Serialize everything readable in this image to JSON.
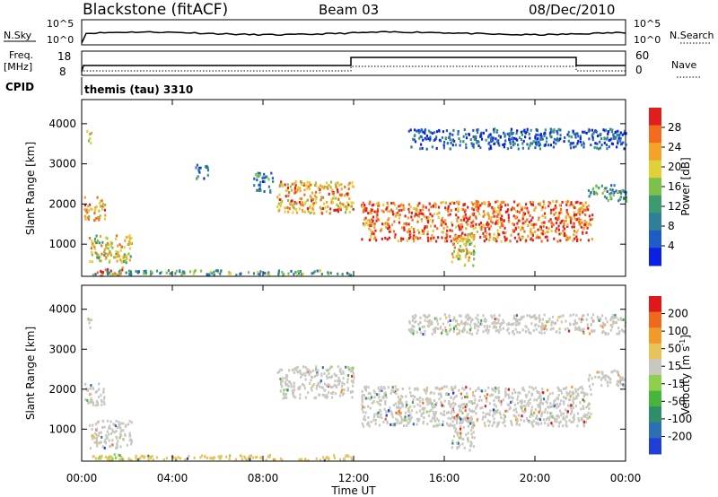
{
  "header": {
    "station": "Blackstone (fitACF)",
    "beam": "Beam 03",
    "date": "08/Dec/2010"
  },
  "noise_panel": {
    "left_label": "N.Sky",
    "right_label": "N.Search",
    "left_ticks": [
      "10^5",
      "10^0"
    ],
    "right_ticks": [
      "10^5",
      "10^0"
    ]
  },
  "freq_panel": {
    "left_label_1": "Freq.",
    "left_label_2": "[MHz]",
    "right_label": "Nave",
    "left_ticks": [
      "18",
      "8"
    ],
    "right_ticks": [
      "60",
      "0"
    ],
    "cpid_label": "CPID",
    "program_label": "themis (tau) 3310"
  },
  "colors": {
    "power": [
      "#0a1ee6",
      "#1e5ac8",
      "#2f7f99",
      "#3c9a6e",
      "#7cc24a",
      "#e0d03a",
      "#f4a32a",
      "#f46a1e",
      "#e01e1e"
    ],
    "velocity": [
      "#1e3ed6",
      "#2c6fb4",
      "#2f8e6a",
      "#46b53c",
      "#8cd04c",
      "#c8c8c0",
      "#e8c35a",
      "#f09a2a",
      "#f0681e",
      "#e01818"
    ]
  },
  "chart_data": [
    {
      "type": "heatmap",
      "panel": "power",
      "ylabel": "Slant Range [km]",
      "y_ticks": [
        1000,
        2000,
        3000,
        4000
      ],
      "ylim": [
        200,
        4600
      ],
      "x_ticks": [
        "00:00",
        "04:00",
        "08:00",
        "12:00",
        "16:00",
        "20:00",
        "00:00"
      ],
      "xlim_hours": [
        0,
        24
      ],
      "colorbar_label": "Power [dB]",
      "colorbar_ticks": [
        "28",
        "24",
        "20",
        "16",
        "12",
        "8",
        "4"
      ],
      "regions": [
        {
          "t0": 0.2,
          "t1": 0.45,
          "r0": 3550,
          "r1": 3850,
          "level": 5
        },
        {
          "t0": 0.1,
          "t1": 1.0,
          "r0": 1600,
          "r1": 2200,
          "level": 6
        },
        {
          "t0": 0.3,
          "t1": 2.2,
          "r0": 550,
          "r1": 1250,
          "level": 5
        },
        {
          "t0": 0.6,
          "t1": 1.8,
          "r0": 250,
          "r1": 450,
          "level": 7
        },
        {
          "t0": 0.4,
          "t1": 11.9,
          "r0": 250,
          "r1": 380,
          "level": 3
        },
        {
          "t0": 7.5,
          "t1": 8.4,
          "r0": 2300,
          "r1": 2800,
          "level": 2
        },
        {
          "t0": 8.6,
          "t1": 12.0,
          "r0": 1800,
          "r1": 2600,
          "level": 6
        },
        {
          "t0": 5.0,
          "t1": 5.6,
          "r0": 2650,
          "r1": 3000,
          "level": 2
        },
        {
          "t0": 12.3,
          "t1": 22.5,
          "r0": 1100,
          "r1": 2100,
          "level": 7
        },
        {
          "t0": 16.3,
          "t1": 17.3,
          "r0": 500,
          "r1": 1300,
          "level": 5
        },
        {
          "t0": 14.4,
          "t1": 24.0,
          "r0": 3400,
          "r1": 3900,
          "level": 1
        },
        {
          "t0": 22.3,
          "t1": 24.0,
          "r0": 2100,
          "r1": 2500,
          "level": 3
        }
      ]
    },
    {
      "type": "heatmap",
      "panel": "velocity",
      "ylabel": "Slant Range [km]",
      "y_ticks": [
        1000,
        2000,
        3000,
        4000
      ],
      "ylim": [
        200,
        4600
      ],
      "x_ticks": [
        "00:00",
        "04:00",
        "08:00",
        "12:00",
        "16:00",
        "20:00",
        "00:00"
      ],
      "xlabel": "Time UT",
      "xlim_hours": [
        0,
        24
      ],
      "colorbar_label": "Velocity [m s",
      "colorbar_label_sup": "-1",
      "colorbar_label_end": "]",
      "colorbar_ticks": [
        "200",
        "100",
        "50",
        "15",
        "-15",
        "-50",
        "-100",
        "-200"
      ],
      "regions": [
        {
          "t0": 0.2,
          "t1": 0.45,
          "r0": 3550,
          "r1": 3850,
          "level": 5
        },
        {
          "t0": 0.1,
          "t1": 1.0,
          "r0": 1600,
          "r1": 2200,
          "level": 5
        },
        {
          "t0": 0.3,
          "t1": 2.2,
          "r0": 550,
          "r1": 1250,
          "level": 5
        },
        {
          "t0": 0.6,
          "t1": 1.8,
          "r0": 250,
          "r1": 400,
          "level": 4
        },
        {
          "t0": 0.4,
          "t1": 11.9,
          "r0": 250,
          "r1": 380,
          "level": 6
        },
        {
          "t0": 8.6,
          "t1": 12.0,
          "r0": 1800,
          "r1": 2600,
          "level": 5
        },
        {
          "t0": 12.3,
          "t1": 22.5,
          "r0": 1100,
          "r1": 2100,
          "level": 5
        },
        {
          "t0": 16.3,
          "t1": 17.3,
          "r0": 500,
          "r1": 1300,
          "level": 5
        },
        {
          "t0": 14.4,
          "t1": 24.0,
          "r0": 3400,
          "r1": 3900,
          "level": 5
        },
        {
          "t0": 22.3,
          "t1": 24.0,
          "r0": 2100,
          "r1": 2500,
          "level": 5
        }
      ]
    }
  ]
}
